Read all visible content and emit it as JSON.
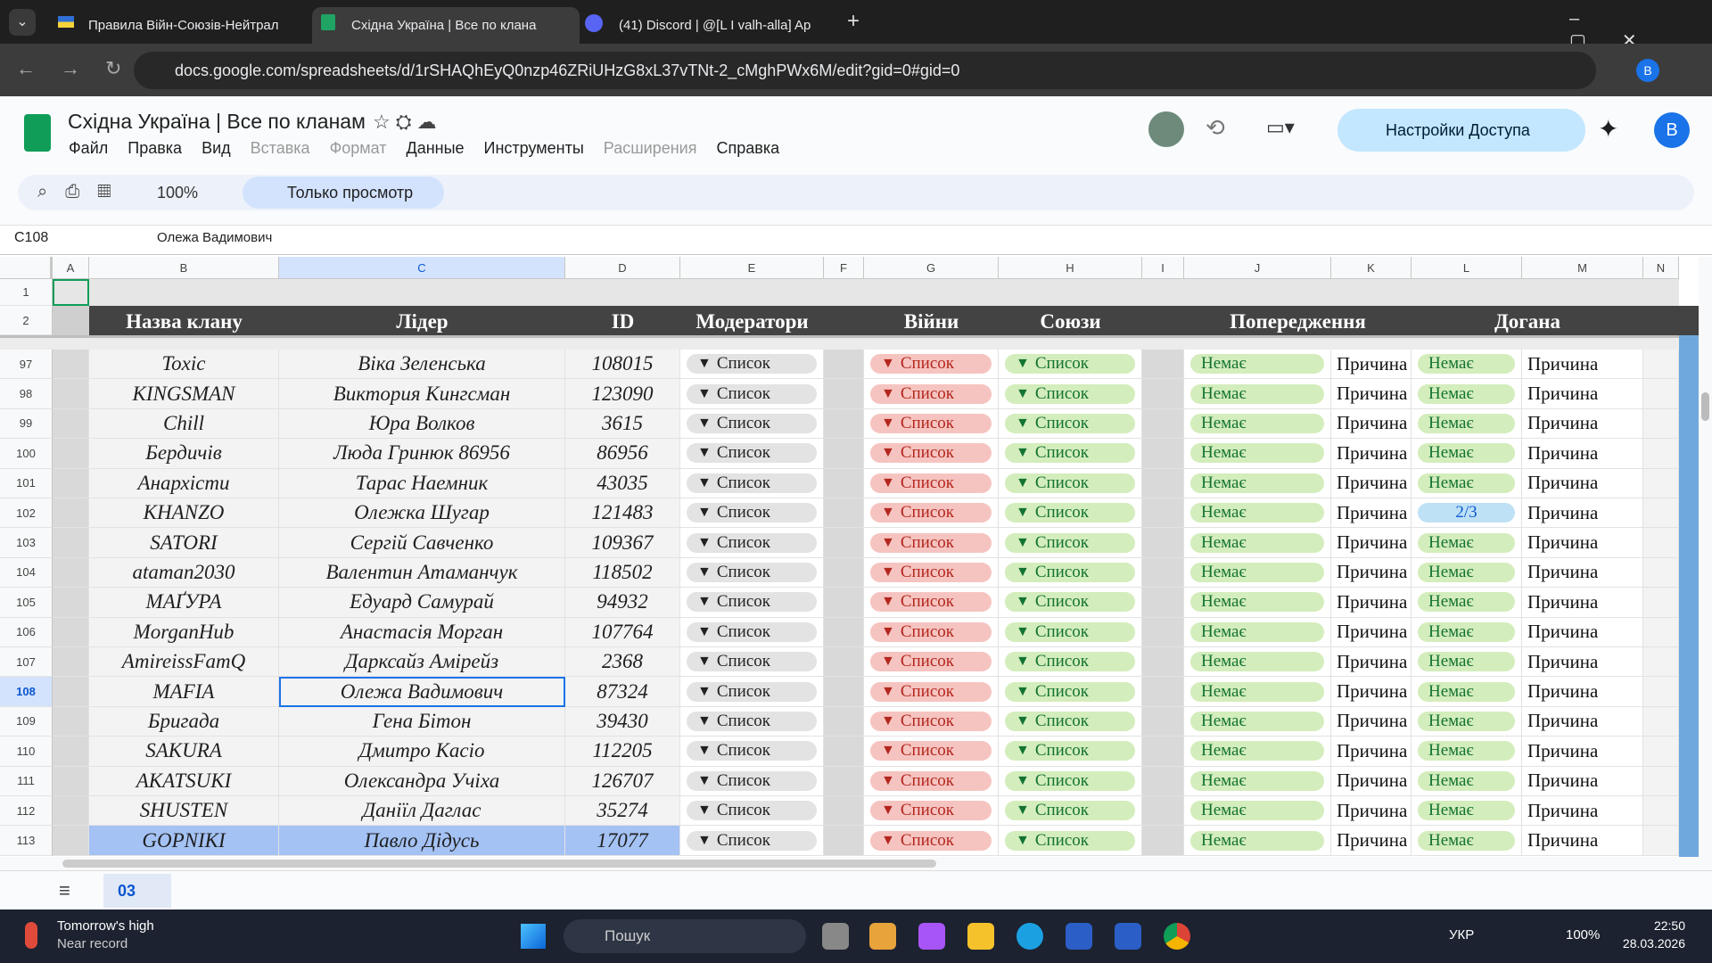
{
  "browser": {
    "tabs": [
      "Правила Війн-Союзів-Нейтрал",
      "Східна Україна | Все по клана",
      "(41) Discord | @[L I valh-alla] Ap"
    ],
    "url": "docs.google.com/spreadsheets/d/1rSHAQhEyQ0nzp46ZRiUHzG8xL37vTNt-2_cMghPWx6M/edit?gid=0#gid=0",
    "profile": "B"
  },
  "header": {
    "title": "Східна Україна | Все по кланам",
    "menu": [
      "Файл",
      "Правка",
      "Вид",
      "Вставка",
      "Формат",
      "Данные",
      "Инструменты",
      "Расширения",
      "Справка"
    ],
    "share": "Настройки Доступа",
    "avatar": "B"
  },
  "toolbar": {
    "zoom": "100%",
    "mode": "Только просмотр"
  },
  "formula_bar": {
    "cell": "C108",
    "content": "Олежа Вадимович"
  },
  "sheet": {
    "columns": [
      "A",
      "B",
      "C",
      "D",
      "E",
      "F",
      "G",
      "H",
      "I",
      "J",
      "K",
      "L",
      "M",
      "N"
    ],
    "header_rows": [
      "1",
      "2"
    ],
    "headers": [
      "Назва клану",
      "Лідер",
      "ID",
      "Модератори",
      "Війни",
      "Союзи",
      "Попередження",
      "Догана"
    ],
    "rows": [
      [
        "97",
        "Toxic",
        "Віка Зеленська",
        "108015",
        "Список",
        "Список",
        "Список",
        "Немає",
        "Причина",
        "Немає",
        "Причина"
      ],
      [
        "98",
        "KINGSMAN",
        "Виктория Кингсман",
        "123090",
        "Список",
        "Список",
        "Список",
        "Немає",
        "Причина",
        "Немає",
        "Причина"
      ],
      [
        "99",
        "Chill",
        "Юра Волков",
        "3615",
        "Список",
        "Список",
        "Список",
        "Немає",
        "Причина",
        "Немає",
        "Причина"
      ],
      [
        "100",
        "Бердичів",
        "Люда Гринюк 86956",
        "86956",
        "Список",
        "Список",
        "Список",
        "Немає",
        "Причина",
        "Немає",
        "Причина"
      ],
      [
        "101",
        "Анархісти",
        "Тарас Наемник",
        "43035",
        "Список",
        "Список",
        "Список",
        "Немає",
        "Причина",
        "Немає",
        "Причина"
      ],
      [
        "102",
        "KHANZO",
        "Олежка Шугар",
        "121483",
        "Список",
        "Список",
        "Список",
        "Немає",
        "Причина",
        "2/3",
        "Причина"
      ],
      [
        "103",
        "SATORI",
        "Сергій Савченко",
        "109367",
        "Список",
        "Список",
        "Список",
        "Немає",
        "Причина",
        "Немає",
        "Причина"
      ],
      [
        "104",
        "ataman2030",
        "Валентин Атаманчук",
        "118502",
        "Список",
        "Список",
        "Список",
        "Немає",
        "Причина",
        "Немає",
        "Причина"
      ],
      [
        "105",
        "МАҐУРА",
        "Едуард Самурай",
        "94932",
        "Список",
        "Список",
        "Список",
        "Немає",
        "Причина",
        "Немає",
        "Причина"
      ],
      [
        "106",
        "MorganHub",
        "Анастасія Морган",
        "107764",
        "Список",
        "Список",
        "Список",
        "Немає",
        "Причина",
        "Немає",
        "Причина"
      ],
      [
        "107",
        "AmireissFamQ",
        "Дарксайз Амірейз",
        "2368",
        "Список",
        "Список",
        "Список",
        "Немає",
        "Причина",
        "Немає",
        "Причина"
      ],
      [
        "108",
        "MAFIA",
        "Олежа Вадимович",
        "87324",
        "Список",
        "Список",
        "Список",
        "Немає",
        "Причина",
        "Немає",
        "Причина"
      ],
      [
        "109",
        "Бригада",
        "Гена Бітон",
        "39430",
        "Список",
        "Список",
        "Список",
        "Немає",
        "Причина",
        "Немає",
        "Причина"
      ],
      [
        "110",
        "SAKURA",
        "Дмитро Касіо",
        "112205",
        "Список",
        "Список",
        "Список",
        "Немає",
        "Причина",
        "Немає",
        "Причина"
      ],
      [
        "111",
        "AKATSUKI",
        "Олександра Учіха",
        "126707",
        "Список",
        "Список",
        "Список",
        "Немає",
        "Причина",
        "Немає",
        "Причина"
      ],
      [
        "112",
        "SHUSTEN",
        "Даніїл Даглас",
        "35274",
        "Список",
        "Список",
        "Список",
        "Немає",
        "Причина",
        "Немає",
        "Причина"
      ],
      [
        "113",
        "GOPNIKI",
        "Павло Дідусь",
        "17077",
        "Список",
        "Список",
        "Список",
        "Немає",
        "Причина",
        "Немає",
        "Причина"
      ]
    ]
  },
  "sheet_tabs": [
    "03"
  ],
  "taskbar": {
    "weather_title": "Tomorrow's high",
    "weather_sub": "Near record",
    "search": "Пошук",
    "lang": "УКР",
    "battery": "100%",
    "time": "22:50",
    "date": "28.03.2026"
  }
}
